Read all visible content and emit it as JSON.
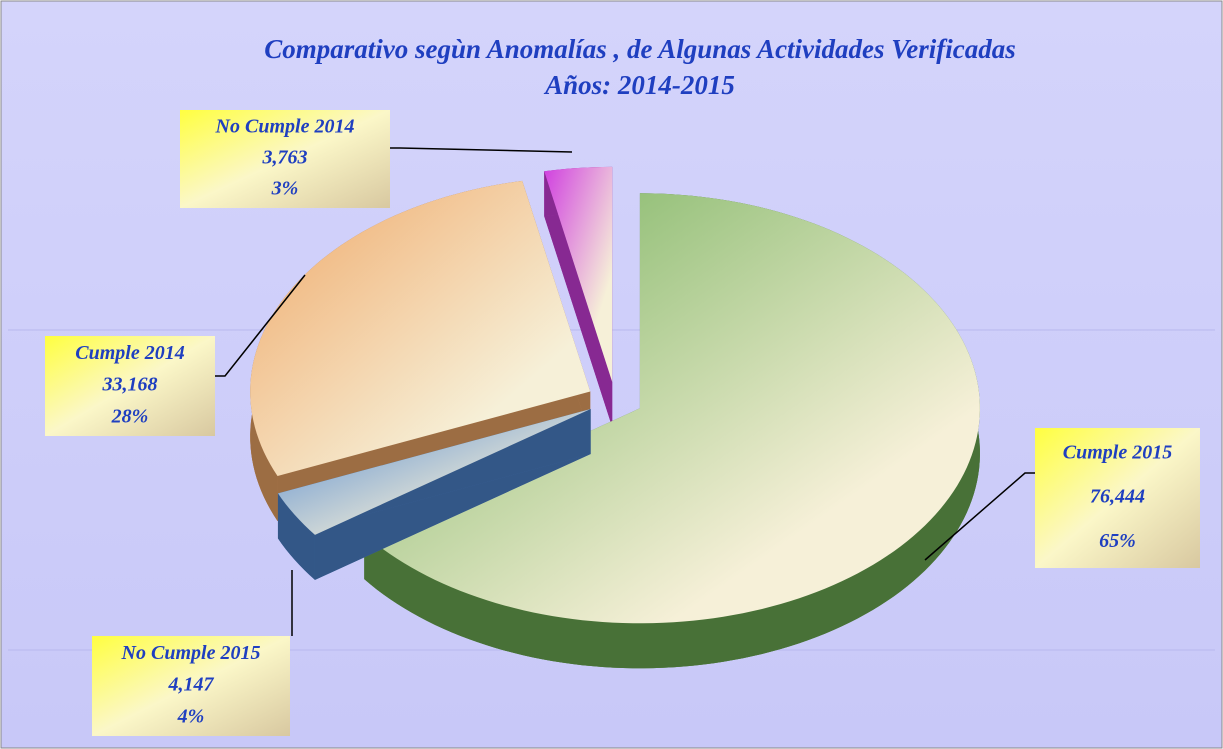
{
  "chart_data": {
    "type": "pie3d",
    "title": [
      "Comparativo segùn Anomalías , de Algunas Actividades  Verificadas",
      "Años: 2014-2015"
    ],
    "categories": [
      "Cumple 2015",
      "No Cumple 2015",
      "Cumple 2014",
      "No Cumple 2014"
    ],
    "values": [
      76444,
      4147,
      33168,
      3763
    ],
    "value_labels": [
      "76,444",
      "4,147",
      "33,168",
      "3,763"
    ],
    "percents": [
      65,
      4,
      28,
      3
    ],
    "percent_labels": [
      "65%",
      "4%",
      "28%",
      "3%"
    ],
    "colors": [
      "#6fae55",
      "#4f86d0",
      "#f0a868",
      "#d040e0"
    ],
    "exploded": true
  }
}
